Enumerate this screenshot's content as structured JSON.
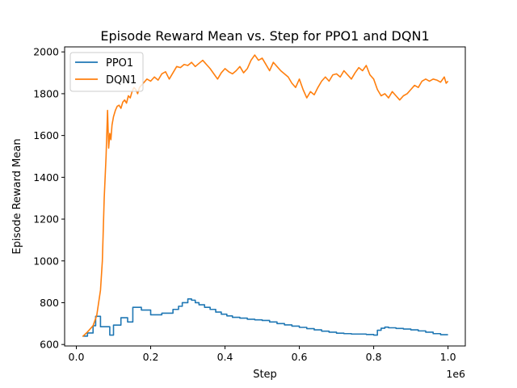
{
  "chart_data": {
    "type": "line",
    "title": "Episode Reward Mean vs. Step for PPO1 and DQN1",
    "xlabel": "Step",
    "ylabel": "Episode Reward Mean",
    "x_offset_text": "1e6",
    "xlim": [
      -0.0315,
      1.0465
    ],
    "ylim": [
      593,
      2024
    ],
    "xticks": [
      0.0,
      0.2,
      0.4,
      0.6,
      0.8,
      1.0
    ],
    "xtick_labels": [
      "0.0",
      "0.2",
      "0.4",
      "0.6",
      "0.8",
      "1.0"
    ],
    "yticks": [
      600,
      800,
      1000,
      1200,
      1400,
      1600,
      1800,
      2000
    ],
    "ytick_labels": [
      "600",
      "800",
      "1000",
      "1200",
      "1400",
      "1600",
      "1800",
      "2000"
    ],
    "grid": false,
    "legend_position": "top-left",
    "series": [
      {
        "name": "PPO1",
        "color": "#1f77b4",
        "drawstyle": "steps-post",
        "x": [
          0.017,
          0.03,
          0.045,
          0.052,
          0.065,
          0.09,
          0.1,
          0.12,
          0.138,
          0.152,
          0.175,
          0.2,
          0.23,
          0.26,
          0.275,
          0.285,
          0.3,
          0.31,
          0.32,
          0.33,
          0.345,
          0.36,
          0.375,
          0.39,
          0.405,
          0.42,
          0.44,
          0.46,
          0.48,
          0.5,
          0.52,
          0.54,
          0.56,
          0.58,
          0.6,
          0.62,
          0.64,
          0.66,
          0.68,
          0.7,
          0.72,
          0.74,
          0.76,
          0.78,
          0.8,
          0.81,
          0.82,
          0.83,
          0.84,
          0.86,
          0.88,
          0.9,
          0.92,
          0.94,
          0.96,
          0.98,
          1.0
        ],
        "y": [
          640,
          655,
          690,
          735,
          685,
          645,
          693,
          728,
          708,
          778,
          765,
          742,
          750,
          768,
          783,
          800,
          818,
          812,
          800,
          790,
          778,
          768,
          755,
          745,
          737,
          730,
          726,
          721,
          718,
          715,
          708,
          700,
          694,
          688,
          682,
          676,
          670,
          664,
          659,
          654,
          652,
          650,
          650,
          648,
          645,
          668,
          678,
          683,
          680,
          677,
          674,
          670,
          665,
          659,
          652,
          647,
          647
        ]
      },
      {
        "name": "DQN1",
        "color": "#ff7f0e",
        "drawstyle": "line",
        "x": [
          0.017,
          0.03,
          0.045,
          0.055,
          0.065,
          0.07,
          0.075,
          0.08,
          0.084,
          0.087,
          0.09,
          0.093,
          0.096,
          0.1,
          0.105,
          0.11,
          0.115,
          0.12,
          0.125,
          0.13,
          0.135,
          0.14,
          0.145,
          0.15,
          0.155,
          0.16,
          0.165,
          0.17,
          0.18,
          0.19,
          0.2,
          0.21,
          0.22,
          0.23,
          0.24,
          0.25,
          0.26,
          0.27,
          0.28,
          0.29,
          0.3,
          0.31,
          0.32,
          0.33,
          0.34,
          0.35,
          0.36,
          0.37,
          0.38,
          0.39,
          0.4,
          0.41,
          0.42,
          0.43,
          0.44,
          0.45,
          0.46,
          0.47,
          0.48,
          0.49,
          0.5,
          0.51,
          0.52,
          0.53,
          0.54,
          0.55,
          0.56,
          0.57,
          0.58,
          0.59,
          0.6,
          0.61,
          0.62,
          0.63,
          0.64,
          0.65,
          0.66,
          0.67,
          0.68,
          0.69,
          0.7,
          0.71,
          0.72,
          0.73,
          0.74,
          0.75,
          0.76,
          0.77,
          0.78,
          0.79,
          0.8,
          0.81,
          0.82,
          0.83,
          0.84,
          0.85,
          0.86,
          0.87,
          0.88,
          0.89,
          0.9,
          0.91,
          0.92,
          0.93,
          0.94,
          0.95,
          0.96,
          0.97,
          0.98,
          0.99,
          0.995,
          1.0
        ],
        "y": [
          638,
          660,
          690,
          740,
          860,
          1000,
          1300,
          1500,
          1720,
          1540,
          1610,
          1580,
          1650,
          1690,
          1720,
          1740,
          1745,
          1730,
          1760,
          1770,
          1755,
          1790,
          1780,
          1810,
          1830,
          1820,
          1800,
          1830,
          1850,
          1870,
          1860,
          1880,
          1865,
          1895,
          1905,
          1870,
          1900,
          1930,
          1925,
          1940,
          1935,
          1950,
          1930,
          1945,
          1960,
          1940,
          1920,
          1895,
          1870,
          1900,
          1920,
          1905,
          1895,
          1910,
          1930,
          1900,
          1920,
          1960,
          1985,
          1960,
          1970,
          1940,
          1910,
          1950,
          1930,
          1910,
          1895,
          1880,
          1850,
          1830,
          1870,
          1820,
          1780,
          1810,
          1795,
          1830,
          1860,
          1880,
          1860,
          1890,
          1895,
          1880,
          1910,
          1890,
          1870,
          1900,
          1925,
          1910,
          1935,
          1890,
          1870,
          1820,
          1790,
          1800,
          1780,
          1810,
          1790,
          1770,
          1790,
          1800,
          1820,
          1840,
          1830,
          1860,
          1870,
          1860,
          1870,
          1865,
          1855,
          1880,
          1850,
          1860
        ]
      }
    ]
  }
}
